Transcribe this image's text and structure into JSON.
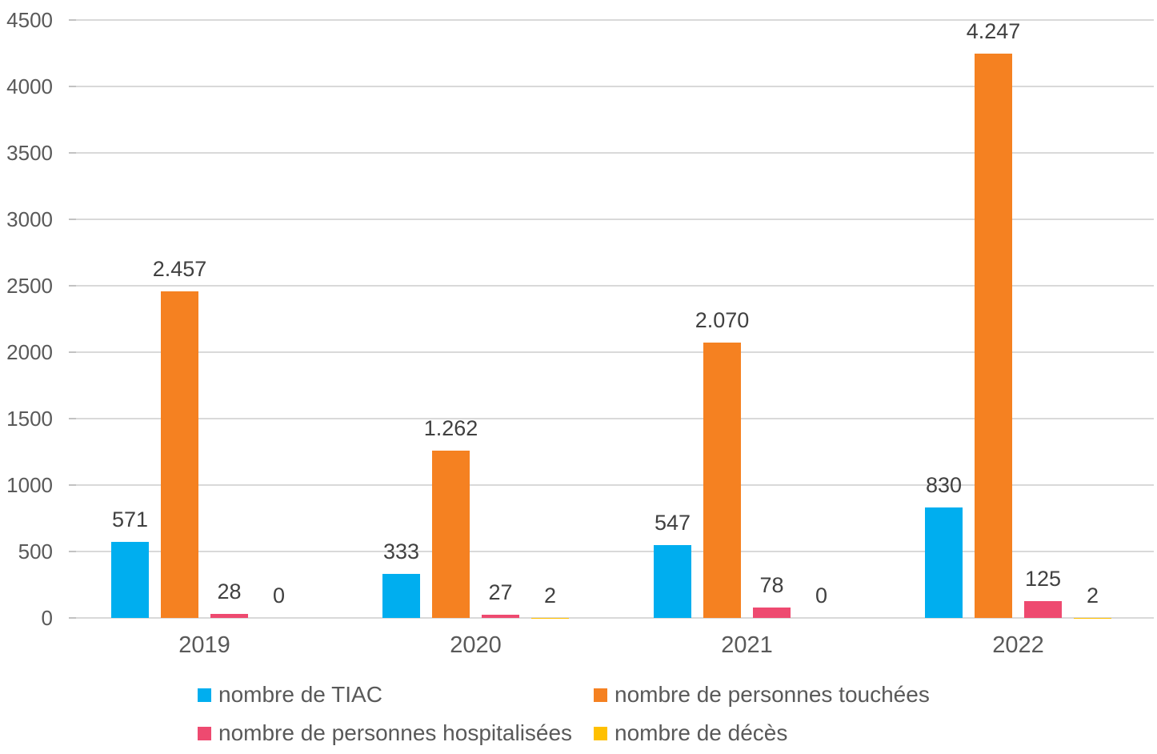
{
  "chart_data": {
    "type": "bar",
    "title": "",
    "xlabel": "",
    "ylabel": "",
    "categories": [
      "2019",
      "2020",
      "2021",
      "2022"
    ],
    "series": [
      {
        "name": "nombre de TIAC",
        "color": "#00AEEF",
        "values": [
          571,
          333,
          547,
          830
        ],
        "labels": [
          "571",
          "333",
          "547",
          "830"
        ]
      },
      {
        "name": "nombre de personnes touchées",
        "color": "#F58121",
        "values": [
          2457,
          1262,
          2070,
          4247
        ],
        "labels": [
          "2.457",
          "1.262",
          "2.070",
          "4.247"
        ]
      },
      {
        "name": "nombre de personnes hospitalisées",
        "color": "#EE4A70",
        "values": [
          28,
          27,
          78,
          125
        ],
        "labels": [
          "28",
          "27",
          "78",
          "125"
        ]
      },
      {
        "name": "nombre de décès",
        "color": "#FFC000",
        "values": [
          0,
          2,
          0,
          2
        ],
        "labels": [
          "0",
          "2",
          "0",
          "2"
        ]
      }
    ],
    "y_axis": {
      "min": 0,
      "max": 4500,
      "step": 500,
      "tick_labels": [
        "0",
        "500",
        "1000",
        "1500",
        "2000",
        "2500",
        "3000",
        "3500",
        "4000",
        "4500"
      ]
    },
    "grid": true,
    "legend_position": "bottom",
    "colors": {
      "axis_text": "#595959",
      "data_label_text": "#404040",
      "gridline": "#D9D9D9",
      "background": "#FFFFFF"
    }
  }
}
